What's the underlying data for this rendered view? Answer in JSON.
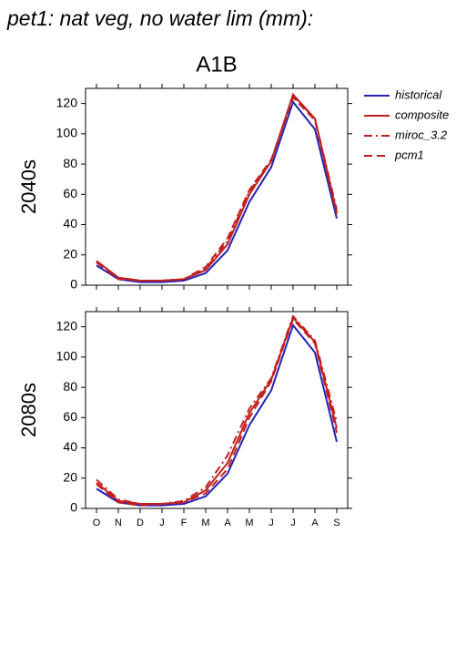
{
  "title": "pet1: nat veg, no water lim (mm):",
  "chart_data": [
    {
      "type": "line",
      "title": "A1B",
      "ylabel": "2040s",
      "categories": [
        null,
        null,
        null,
        null,
        null,
        null,
        null,
        null,
        null,
        null,
        null,
        null
      ],
      "ylim": [
        0,
        130
      ],
      "yticks": [
        0,
        20,
        40,
        60,
        80,
        100,
        120
      ],
      "series": [
        {
          "name": "historical",
          "color": "#2323b8",
          "style": "solid",
          "values": [
            13,
            4,
            2,
            2,
            3,
            8,
            23,
            55,
            78,
            121,
            103,
            44
          ]
        },
        {
          "name": "composite",
          "color": "#c21f1f",
          "style": "solid",
          "values": [
            16,
            5,
            3,
            3,
            4,
            10,
            27,
            60,
            82,
            126,
            110,
            48
          ]
        },
        {
          "name": "miroc_3.2",
          "color": "#c21f1f",
          "style": "dashdot",
          "values": [
            16,
            5,
            3,
            3,
            4,
            11,
            29,
            62,
            82,
            125,
            110,
            50
          ]
        },
        {
          "name": "pcm1",
          "color": "#c21f1f",
          "style": "dash",
          "values": [
            15,
            4,
            3,
            3,
            4,
            12,
            31,
            63,
            83,
            124,
            109,
            47
          ]
        }
      ]
    },
    {
      "type": "line",
      "ylabel": "2080s",
      "categories": [
        "O",
        "N",
        "D",
        "J",
        "F",
        "M",
        "A",
        "M",
        "J",
        "J",
        "A",
        "S"
      ],
      "ylim": [
        0,
        130
      ],
      "yticks": [
        0,
        20,
        40,
        60,
        80,
        100,
        120
      ],
      "series": [
        {
          "color": "#2323b8",
          "style": "solid",
          "values": [
            13,
            4,
            2,
            2,
            3,
            8,
            23,
            55,
            78,
            121,
            103,
            44
          ]
        },
        {
          "color": "#c21f1f",
          "style": "solid",
          "values": [
            17,
            5,
            3,
            3,
            4,
            12,
            30,
            63,
            85,
            126,
            110,
            53
          ]
        },
        {
          "color": "#c21f1f",
          "style": "dashdot",
          "values": [
            19,
            6,
            3,
            3,
            5,
            14,
            35,
            66,
            86,
            127,
            111,
            57
          ]
        },
        {
          "color": "#c21f1f",
          "style": "dash",
          "values": [
            16,
            4,
            2,
            3,
            4,
            10,
            26,
            60,
            84,
            125,
            109,
            50
          ]
        }
      ]
    }
  ]
}
